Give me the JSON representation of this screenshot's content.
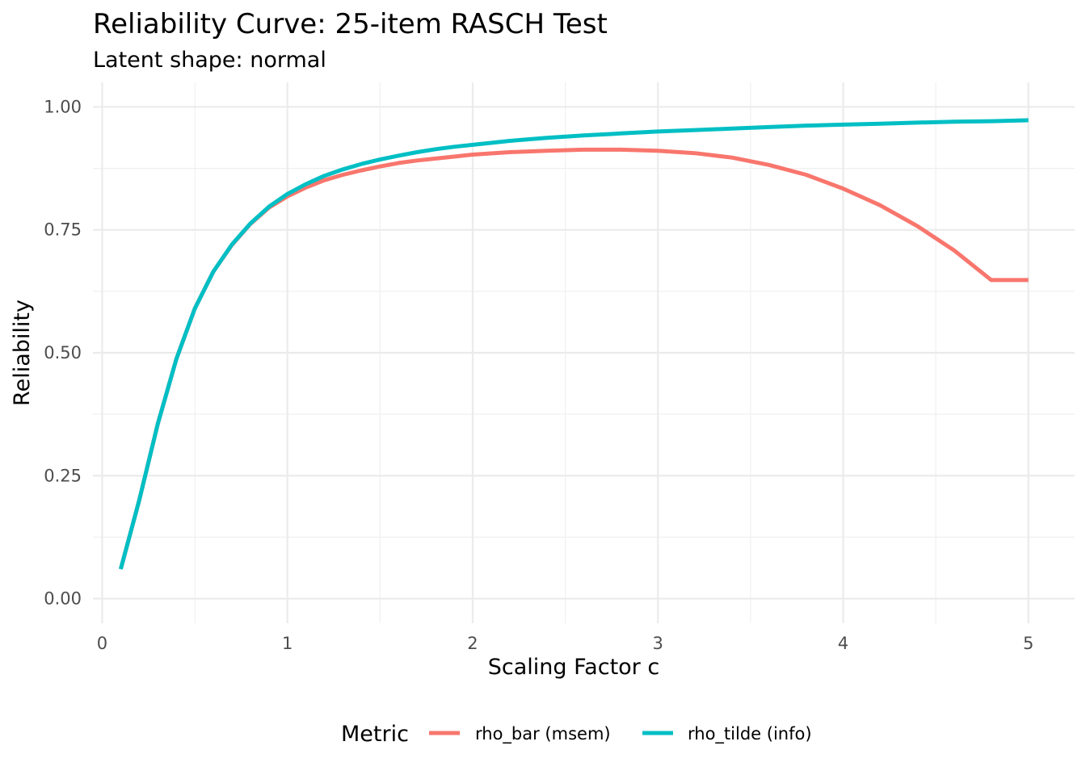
{
  "chart_data": {
    "type": "line",
    "title": "Reliability Curve: 25-item RASCH Test",
    "subtitle": "Latent shape: normal",
    "xlabel": "Scaling Factor c",
    "ylabel": "Reliability",
    "xlim": [
      -0.05,
      5.25
    ],
    "ylim": [
      -0.05,
      1.05
    ],
    "x_ticks": [
      0,
      1,
      2,
      3,
      4,
      5
    ],
    "x_tick_labels": [
      "0",
      "1",
      "2",
      "3",
      "4",
      "5"
    ],
    "y_ticks": [
      0,
      0.25,
      0.5,
      0.75,
      1
    ],
    "y_tick_labels": [
      "0.00",
      "0.25",
      "0.50",
      "0.75",
      "1.00"
    ],
    "grid": true,
    "legend": {
      "title": "Metric",
      "position": "bottom"
    },
    "x": [
      0.1,
      0.2,
      0.3,
      0.4,
      0.5,
      0.6,
      0.7,
      0.8,
      0.9,
      1.0,
      1.1,
      1.2,
      1.3,
      1.4,
      1.5,
      1.6,
      1.7,
      1.8,
      1.9,
      2.0,
      2.2,
      2.4,
      2.6,
      2.8,
      3.0,
      3.2,
      3.4,
      3.6,
      3.8,
      4.0,
      4.2,
      4.4,
      4.6,
      4.8,
      5.0
    ],
    "series": [
      {
        "name": "rho_bar (msem)",
        "color": "#F8766D",
        "values": [
          0.06,
          0.2,
          0.355,
          0.487,
          0.59,
          0.665,
          0.719,
          0.762,
          0.795,
          0.818,
          0.836,
          0.851,
          0.862,
          0.871,
          0.879,
          0.886,
          0.891,
          0.895,
          0.899,
          0.903,
          0.908,
          0.911,
          0.913,
          0.913,
          0.911,
          0.906,
          0.897,
          0.882,
          0.862,
          0.834,
          0.8,
          0.758,
          0.708,
          0.648,
          0.648
        ]
      },
      {
        "name": "rho_tilde (info)",
        "color": "#00BFC4",
        "values": [
          0.06,
          0.2,
          0.355,
          0.487,
          0.59,
          0.665,
          0.72,
          0.763,
          0.797,
          0.823,
          0.843,
          0.86,
          0.873,
          0.884,
          0.893,
          0.901,
          0.908,
          0.914,
          0.919,
          0.923,
          0.931,
          0.937,
          0.942,
          0.946,
          0.95,
          0.953,
          0.956,
          0.959,
          0.962,
          0.964,
          0.966,
          0.968,
          0.97,
          0.971,
          0.973
        ]
      }
    ]
  }
}
